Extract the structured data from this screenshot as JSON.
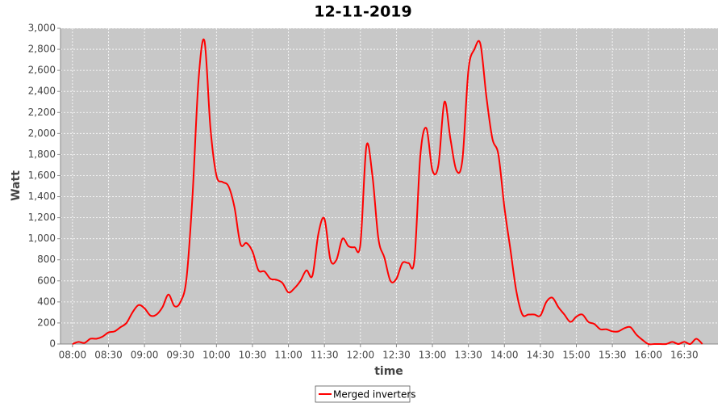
{
  "chart_data": {
    "type": "line",
    "title": "12-11-2019",
    "x_label": "time",
    "y_label": "Watt",
    "x": [
      "08:00",
      "08:05",
      "08:10",
      "08:15",
      "08:20",
      "08:25",
      "08:30",
      "08:35",
      "08:40",
      "08:45",
      "08:50",
      "08:55",
      "09:00",
      "09:05",
      "09:10",
      "09:15",
      "09:20",
      "09:25",
      "09:30",
      "09:35",
      "09:40",
      "09:45",
      "09:50",
      "09:55",
      "10:00",
      "10:05",
      "10:10",
      "10:15",
      "10:20",
      "10:25",
      "10:30",
      "10:35",
      "10:40",
      "10:45",
      "10:50",
      "10:55",
      "11:00",
      "11:05",
      "11:10",
      "11:15",
      "11:20",
      "11:25",
      "11:30",
      "11:35",
      "11:40",
      "11:45",
      "11:50",
      "11:55",
      "12:00",
      "12:05",
      "12:10",
      "12:15",
      "12:20",
      "12:25",
      "12:30",
      "12:35",
      "12:40",
      "12:45",
      "12:50",
      "12:55",
      "13:00",
      "13:05",
      "13:10",
      "13:15",
      "13:20",
      "13:25",
      "13:30",
      "13:35",
      "13:40",
      "13:45",
      "13:50",
      "13:55",
      "14:00",
      "14:05",
      "14:10",
      "14:15",
      "14:20",
      "14:25",
      "14:30",
      "14:35",
      "14:40",
      "14:45",
      "14:50",
      "14:55",
      "15:00",
      "15:05",
      "15:10",
      "15:15",
      "15:20",
      "15:25",
      "15:30",
      "15:35",
      "15:40",
      "15:45",
      "15:50",
      "15:55",
      "16:00",
      "16:05",
      "16:10",
      "16:15",
      "16:20",
      "16:25",
      "16:30",
      "16:35",
      "16:40",
      "16:45"
    ],
    "series": [
      {
        "name": "Merged inverters",
        "color": "#ff0000",
        "values": [
          0,
          20,
          10,
          50,
          50,
          70,
          110,
          120,
          160,
          200,
          300,
          370,
          340,
          270,
          280,
          350,
          470,
          360,
          400,
          620,
          1400,
          2500,
          2880,
          2050,
          1600,
          1540,
          1500,
          1300,
          950,
          960,
          880,
          700,
          690,
          620,
          610,
          580,
          490,
          530,
          600,
          700,
          650,
          1050,
          1190,
          800,
          800,
          1000,
          930,
          920,
          950,
          1880,
          1600,
          1000,
          820,
          600,
          620,
          770,
          770,
          800,
          1800,
          2050,
          1650,
          1700,
          2300,
          1950,
          1650,
          1750,
          2600,
          2800,
          2850,
          2350,
          1950,
          1800,
          1300,
          900,
          500,
          280,
          280,
          280,
          270,
          400,
          440,
          350,
          280,
          210,
          260,
          280,
          210,
          190,
          140,
          140,
          120,
          120,
          150,
          160,
          90,
          40,
          0,
          0,
          0,
          0,
          20,
          0,
          20,
          0,
          50,
          0
        ]
      }
    ],
    "xlim": [
      "07:50",
      "16:58"
    ],
    "xticks": [
      "08:00",
      "08:30",
      "09:00",
      "09:30",
      "10:00",
      "10:30",
      "11:00",
      "11:30",
      "12:00",
      "12:30",
      "13:00",
      "13:30",
      "14:00",
      "14:30",
      "15:00",
      "15:30",
      "16:00",
      "16:30"
    ],
    "ylim": [
      0,
      3000
    ],
    "yticks": [
      0,
      200,
      400,
      600,
      800,
      {
        "value": 1000,
        "label": "1,000"
      },
      {
        "value": 1200,
        "label": "1,200"
      },
      {
        "value": 1400,
        "label": "1,400"
      },
      {
        "value": 1600,
        "label": "1,600"
      },
      {
        "value": 1800,
        "label": "1,800"
      },
      {
        "value": 2000,
        "label": "2,000"
      },
      {
        "value": 2200,
        "label": "2,200"
      },
      {
        "value": 2400,
        "label": "2,400"
      },
      {
        "value": 2600,
        "label": "2,600"
      },
      {
        "value": 2800,
        "label": "2,800"
      },
      {
        "value": 3000,
        "label": "3,000"
      }
    ],
    "grid": true,
    "legend": "bottom"
  }
}
